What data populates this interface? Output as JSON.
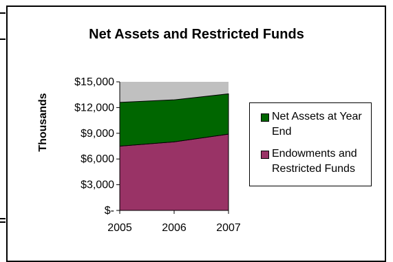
{
  "chart_data": {
    "type": "area",
    "title": "Net Assets and Restricted Funds",
    "ylabel": "Thousands",
    "xlabel": "",
    "x": [
      "2005",
      "2006",
      "2007"
    ],
    "ylim": [
      0,
      15000
    ],
    "yticks": [
      0,
      3000,
      6000,
      9000,
      12000,
      15000
    ],
    "ytick_labels": [
      "$-",
      "$3,000",
      "$6,000",
      "$9,000",
      "$12,000",
      "$15,000"
    ],
    "stacked": true,
    "series": [
      {
        "name": "Endowments and Restricted Funds",
        "values": [
          7500,
          8000,
          8900
        ],
        "color": "#993366"
      },
      {
        "name": "Net Assets at Year End",
        "values": [
          5100,
          4900,
          4700
        ],
        "color": "#006600"
      }
    ],
    "plot_background": "#c0c0c0",
    "grid": false,
    "legend_position": "right"
  }
}
